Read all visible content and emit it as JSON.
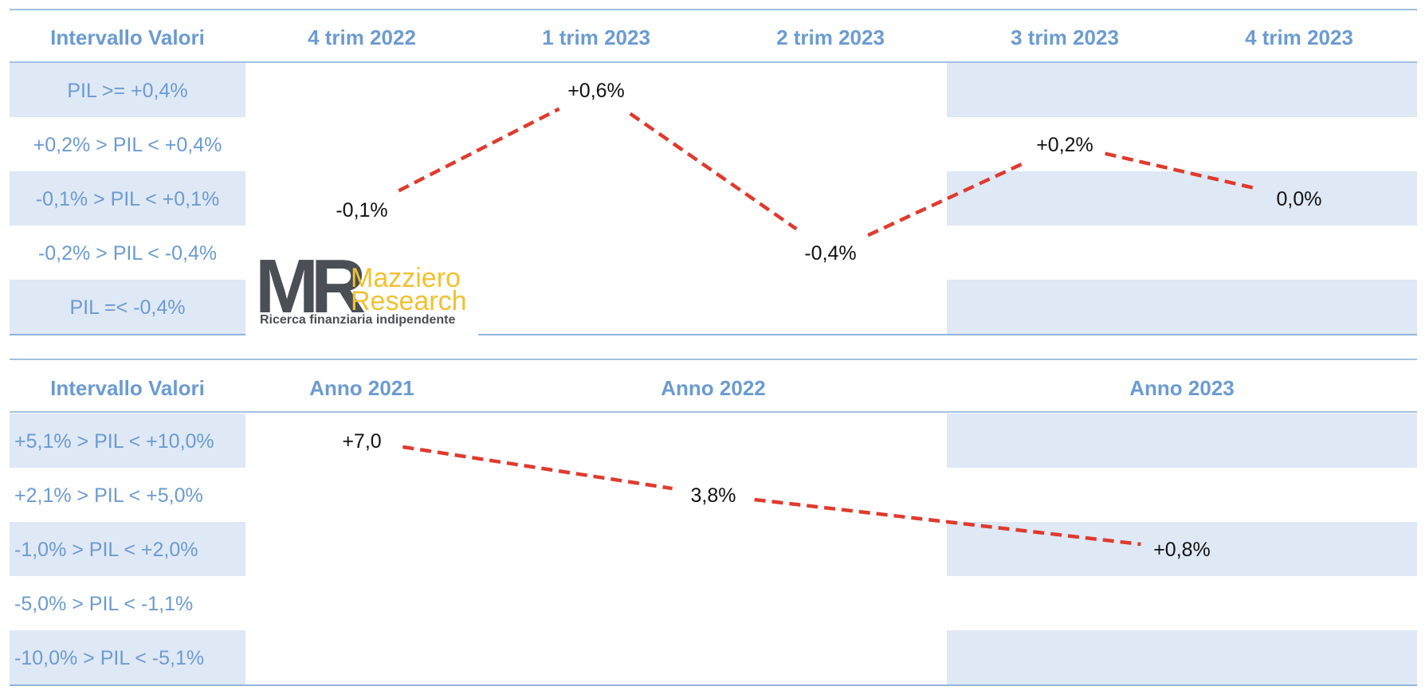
{
  "colors": {
    "header_text": "#6b9bd1",
    "label_text": "#6b9bd1",
    "band_fill": "#dfe8f5",
    "rule": "#6b9bd1",
    "line": "#e03a2e",
    "value_text": "#111111",
    "logo_dark": "#4a4f55",
    "logo_gold": "#f2c12e"
  },
  "logo": {
    "mark": "MR",
    "name_line1": "Mazziero",
    "name_line2": "Research",
    "tagline": "Ricerca finanziaria indipendente"
  },
  "chart_data": [
    {
      "type": "line",
      "title": "",
      "row_header": "Intervallo Valori",
      "categories": [
        "4 trim 2022",
        "1 trim 2023",
        "2 trim 2023",
        "3 trim 2023",
        "4 trim 2023"
      ],
      "rows": [
        "PIL >= +0,4%",
        "+0,2% > PIL < +0,4%",
        "-0,1% > PIL < +0,1%",
        "-0,2% > PIL < -0,4%",
        "PIL =< -0,4%"
      ],
      "values": [
        -0.1,
        0.6,
        -0.4,
        0.2,
        0.0
      ],
      "labels": [
        "-0,1%",
        "+0,6%",
        "-0,4%",
        "+0,2%",
        "0,0%"
      ],
      "value_row": [
        2,
        0,
        3,
        1,
        2
      ],
      "band_x_ranges": [
        [
          -0.5,
          -0.5
        ],
        [
          3.0,
          4.5
        ]
      ],
      "line_style": "dashed",
      "grid": false
    },
    {
      "type": "line",
      "title": "",
      "row_header": "Intervallo Valori",
      "categories": [
        "Anno 2021",
        "Anno 2022",
        "Anno 2023"
      ],
      "rows": [
        "+5,1% > PIL < +10,0%",
        "+2,1% > PIL < +5,0%",
        "-1,0% > PIL < +2,0%",
        "-5,0% > PIL < -1,1%",
        "-10,0% > PIL < -5,1%"
      ],
      "values": [
        7.0,
        3.8,
        0.8
      ],
      "labels": [
        "+7,0",
        "3,8%",
        "+0,8%"
      ],
      "value_row": [
        0,
        1,
        2
      ],
      "line_style": "dashed",
      "grid": false
    }
  ]
}
